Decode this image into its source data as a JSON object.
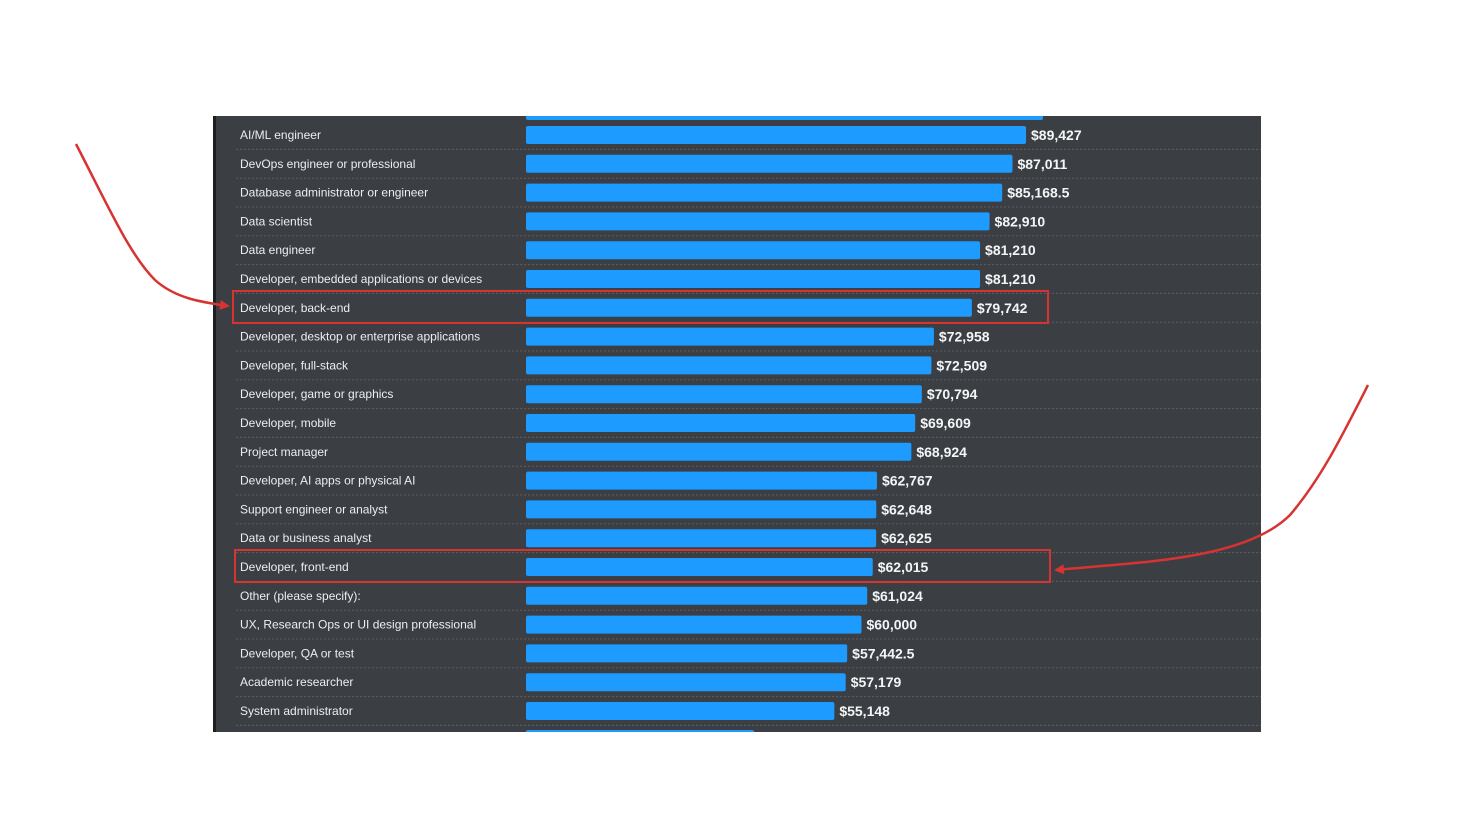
{
  "colors": {
    "panel_bg": "#3b3f44",
    "bar": "#1e9bff",
    "label_text": "#eceeef",
    "annotation": "#d63331"
  },
  "chart_data": {
    "type": "bar",
    "orientation": "horizontal",
    "title": "",
    "xlabel": "",
    "ylabel": "",
    "value_prefix": "$",
    "categories": [
      "AI/ML engineer",
      "DevOps engineer or professional",
      "Database administrator or engineer",
      "Data scientist",
      "Data engineer",
      "Developer, embedded applications or devices",
      "Developer, back-end",
      "Developer, desktop or enterprise applications",
      "Developer, full-stack",
      "Developer, game or graphics",
      "Developer, mobile",
      "Project manager",
      "Developer, AI apps or physical AI",
      "Support engineer or analyst",
      "Data or business analyst",
      "Developer, front-end",
      "Other (please specify):",
      "UX, Research Ops or UI design professional",
      "Developer, QA or test",
      "Academic researcher",
      "System administrator"
    ],
    "values": [
      89427,
      87011,
      85168.5,
      82910,
      81210,
      81210,
      79742,
      72958,
      72509,
      70794,
      69609,
      68924,
      62767,
      62648,
      62625,
      62015,
      61024,
      60000,
      57442.5,
      57179,
      55148
    ],
    "value_labels": [
      "$89,427",
      "$87,011",
      "$85,168.5",
      "$82,910",
      "$81,210",
      "$81,210",
      "$79,742",
      "$72,958",
      "$72,509",
      "$70,794",
      "$69,609",
      "$68,924",
      "$62,767",
      "$62,648",
      "$62,625",
      "$62,015",
      "$61,024",
      "$60,000",
      "$57,442.5",
      "$57,179",
      "$55,148"
    ],
    "xlim": [
      0,
      90000
    ],
    "grid": false,
    "highlighted_categories": [
      "Developer, back-end",
      "Developer, front-end"
    ]
  }
}
